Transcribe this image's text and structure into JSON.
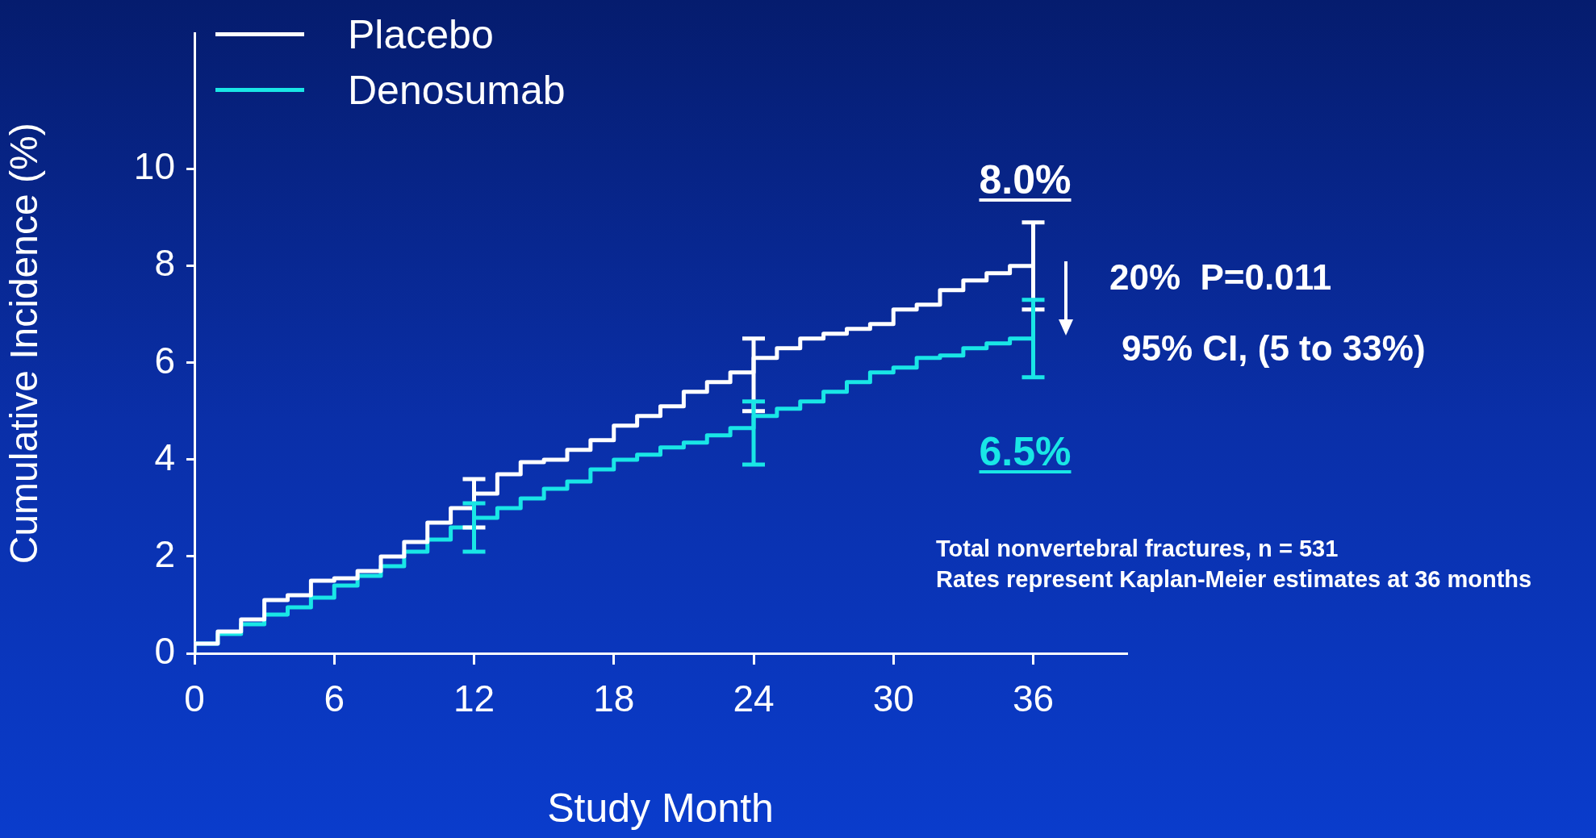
{
  "chart_data": {
    "type": "step",
    "xlabel": "Study Month",
    "ylabel": "Cumulative Incidence (%)",
    "x": [
      0,
      1,
      2,
      3,
      4,
      5,
      6,
      7,
      8,
      9,
      10,
      11,
      12,
      13,
      14,
      15,
      16,
      17,
      18,
      19,
      20,
      21,
      22,
      23,
      24,
      25,
      26,
      27,
      28,
      29,
      30,
      31,
      32,
      33,
      34,
      35,
      36
    ],
    "series": [
      {
        "name": "Placebo",
        "color": "#ffffff",
        "values": [
          0,
          0.2,
          0.45,
          0.7,
          1.1,
          1.2,
          1.5,
          1.55,
          1.7,
          2.0,
          2.3,
          2.7,
          3.0,
          3.3,
          3.7,
          3.95,
          4.0,
          4.2,
          4.4,
          4.7,
          4.9,
          5.1,
          5.4,
          5.6,
          5.8,
          6.1,
          6.3,
          6.5,
          6.6,
          6.7,
          6.8,
          7.1,
          7.2,
          7.5,
          7.7,
          7.85,
          8.0
        ],
        "errors": [
          null,
          null,
          null,
          null,
          null,
          null,
          null,
          null,
          null,
          null,
          null,
          null,
          [
            2.6,
            3.6
          ],
          null,
          null,
          null,
          null,
          null,
          null,
          null,
          null,
          null,
          null,
          null,
          [
            5.0,
            6.5
          ],
          null,
          null,
          null,
          null,
          null,
          null,
          null,
          null,
          null,
          null,
          null,
          [
            7.1,
            8.9
          ]
        ]
      },
      {
        "name": "Denosumab",
        "color": "#19e6e6",
        "values": [
          0,
          0.2,
          0.4,
          0.6,
          0.8,
          0.95,
          1.15,
          1.4,
          1.6,
          1.8,
          2.1,
          2.35,
          2.6,
          2.8,
          3.0,
          3.2,
          3.4,
          3.55,
          3.8,
          4.0,
          4.1,
          4.25,
          4.35,
          4.5,
          4.65,
          4.9,
          5.05,
          5.2,
          5.4,
          5.6,
          5.8,
          5.9,
          6.1,
          6.15,
          6.3,
          6.4,
          6.5
        ],
        "errors": [
          null,
          null,
          null,
          null,
          null,
          null,
          null,
          null,
          null,
          null,
          null,
          null,
          [
            2.1,
            3.1
          ],
          null,
          null,
          null,
          null,
          null,
          null,
          null,
          null,
          null,
          null,
          null,
          [
            3.9,
            5.2
          ],
          null,
          null,
          null,
          null,
          null,
          null,
          null,
          null,
          null,
          null,
          null,
          [
            5.7,
            7.3
          ]
        ]
      }
    ],
    "xlim": [
      0,
      40
    ],
    "xticks": [
      0,
      6,
      12,
      18,
      24,
      30,
      36
    ],
    "ylim": [
      0,
      12.8
    ],
    "yticks": [
      0,
      2,
      4,
      6,
      8,
      10
    ],
    "grid": false,
    "legend": "top left",
    "annotations": [
      {
        "text": "8.0%",
        "x": 36,
        "y": 8.0
      },
      {
        "text": "6.5%",
        "x": 36,
        "y": 6.5
      },
      "20%  P=0.011",
      "95% CI, (5 to 33%)",
      "Total nonvertebral fractures, n = 531",
      "Rates represent Kaplan-Meier estimates at 36 months"
    ]
  }
}
